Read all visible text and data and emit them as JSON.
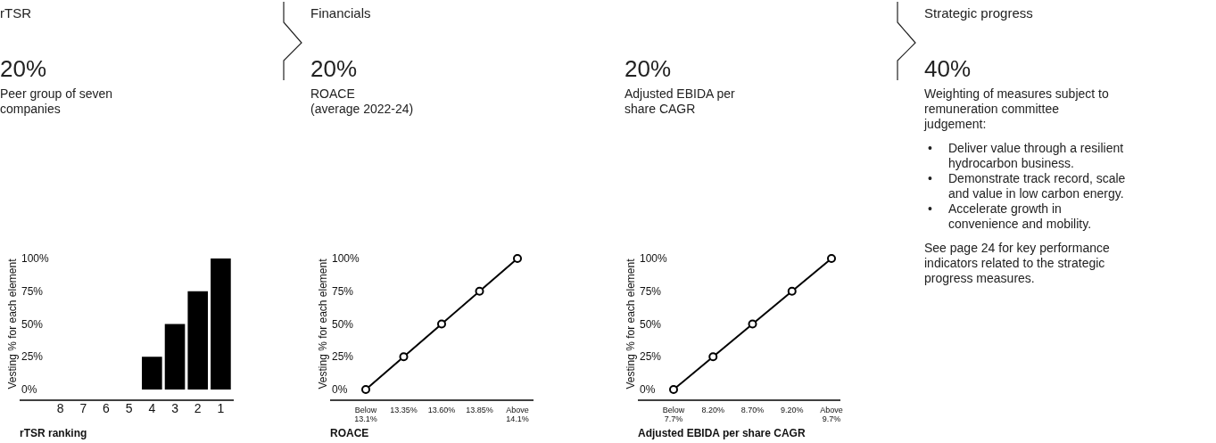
{
  "chart_data": [
    {
      "type": "bar",
      "title": "rTSR",
      "subtitle": "20%",
      "annotations": [
        "Peer group of seven\ncompanies"
      ],
      "categories": [
        "8",
        "7",
        "6",
        "5",
        "4",
        "3",
        "2",
        "1"
      ],
      "series": [
        {
          "color": "#000000",
          "values": [
            0,
            0,
            0,
            0,
            25,
            50,
            75,
            100
          ]
        }
      ],
      "ylim": [
        0,
        100
      ],
      "yticks": [
        {
          "value": 0,
          "label": "0%"
        },
        {
          "value": 25,
          "label": "25%"
        },
        {
          "value": 50,
          "label": "50%"
        },
        {
          "value": 75,
          "label": "75%"
        },
        {
          "value": 100,
          "label": "100%"
        }
      ],
      "ylabel": "Vesting % for each element",
      "xlabel": "rTSR ranking"
    },
    {
      "type": "line",
      "title": "Financials",
      "subtitle": "20%",
      "annotations": [
        "ROACE\n(average 2022-24)"
      ],
      "categories": [
        "Below\n13.1%",
        "13.35%",
        "13.60%",
        "13.85%",
        "Above\n14.1%"
      ],
      "series": [
        {
          "color": "#000000",
          "values": [
            0,
            25,
            50,
            75,
            100
          ]
        }
      ],
      "marker": "circle",
      "ylim": [
        0,
        100
      ],
      "yticks": [
        {
          "value": 0,
          "label": "0%"
        },
        {
          "value": 25,
          "label": "25%"
        },
        {
          "value": 50,
          "label": "50%"
        },
        {
          "value": 75,
          "label": "75%"
        },
        {
          "value": 100,
          "label": "100%"
        }
      ],
      "ylabel": "Vesting % for each element",
      "xlabel": "ROACE"
    },
    {
      "type": "line",
      "subtitle": "20%",
      "annotations": [
        "Adjusted EBIDA per\nshare CAGR"
      ],
      "categories": [
        "Below\n7.7%",
        "8.20%",
        "8.70%",
        "9.20%",
        "Above\n9.7%"
      ],
      "series": [
        {
          "color": "#000000",
          "values": [
            0,
            25,
            50,
            75,
            100
          ]
        }
      ],
      "marker": "circle",
      "ylim": [
        0,
        100
      ],
      "yticks": [
        {
          "value": 0,
          "label": "0%"
        },
        {
          "value": 25,
          "label": "25%"
        },
        {
          "value": 50,
          "label": "50%"
        },
        {
          "value": 75,
          "label": "75%"
        },
        {
          "value": 100,
          "label": "100%"
        }
      ],
      "ylabel": "Vesting % for each element",
      "xlabel": "Adjusted EBIDA per share CAGR"
    },
    {
      "type": "other",
      "title": "Strategic progress",
      "subtitle": "40%",
      "annotations": [
        "Weighting of measures subject to\nremuneration committee\njudgement:",
        "• Deliver value through a resilient\nhydrocarbon business.",
        "• Demonstrate track record, scale\nand value in low carbon energy.",
        "• Accelerate growth in\nconvenience and mobility.",
        "See page 24 for key performance\nindicators related to the strategic\nprogress measures."
      ]
    }
  ]
}
